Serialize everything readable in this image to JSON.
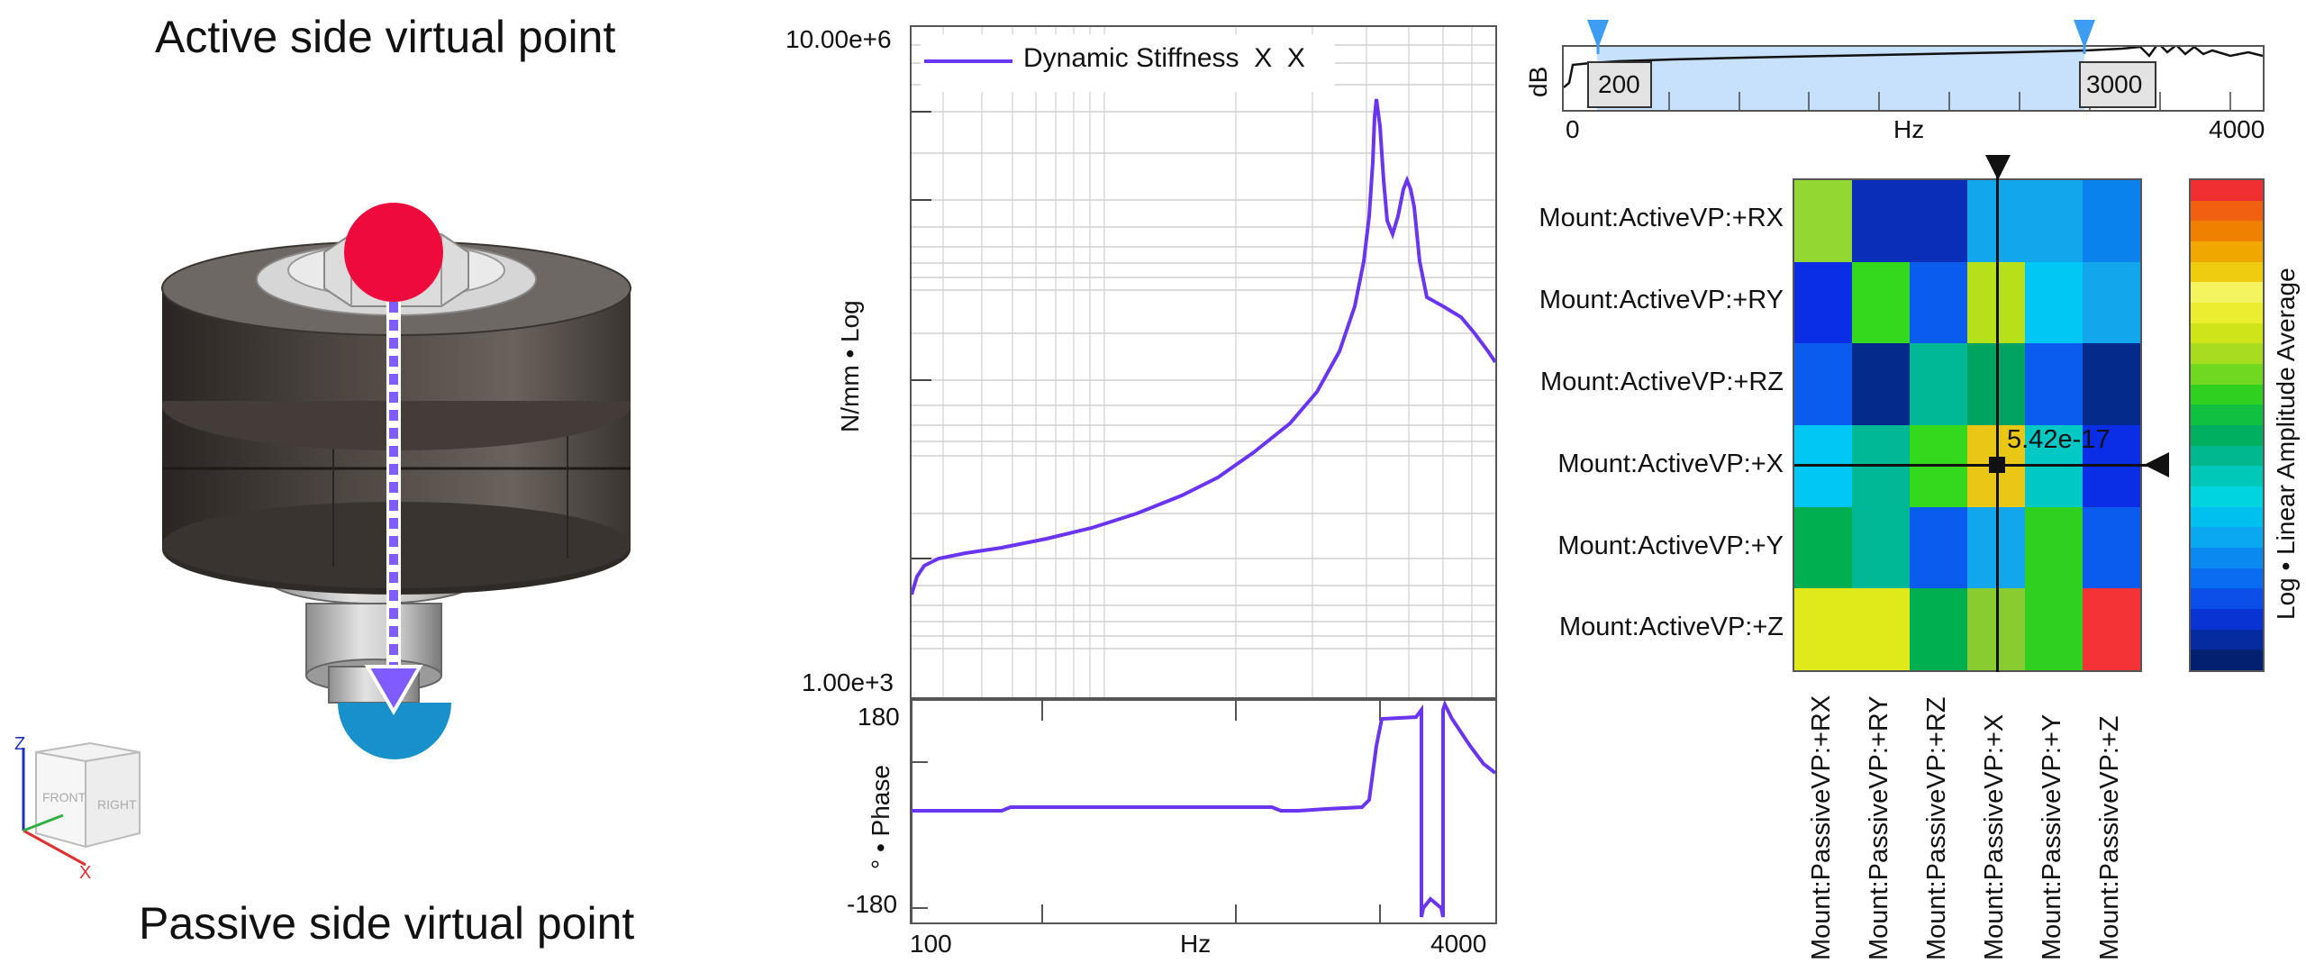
{
  "left_panel": {
    "top_title": "Active side virtual point",
    "bottom_title": "Passive side virtual point",
    "orientation_cube": {
      "axis_z": "Z",
      "axis_x": "X",
      "face_front": "FRONT",
      "face_right": "RIGHT"
    },
    "colors": {
      "active_point": "#ee0a3c",
      "passive_point": "#1890cc",
      "arrow": "#7e5cff"
    }
  },
  "magnitude_plot": {
    "y_top_label": "10.00e+6",
    "y_bottom_label": "1.00e+3",
    "y_axis_label": "N/mm • Log",
    "legend_label": "Dynamic Stiffness  X  X",
    "series_color": "#6a35f0"
  },
  "phase_plot": {
    "y_axis_label": "° • Phase",
    "tick_top": "180",
    "tick_bottom": "-180",
    "x_axis_label": "Hz",
    "x_tick_left": "100",
    "x_tick_right": "4000"
  },
  "range_selector": {
    "y_label": "dB",
    "x_left": "0",
    "x_unit": "Hz",
    "x_right": "4000",
    "range_start": "200",
    "range_end": "3000",
    "marker_color": "#3d9df2"
  },
  "heatmap": {
    "rows": [
      "Mount:ActiveVP:+RX",
      "Mount:ActiveVP:+RY",
      "Mount:ActiveVP:+RZ",
      "Mount:ActiveVP:+X",
      "Mount:ActiveVP:+Y",
      "Mount:ActiveVP:+Z"
    ],
    "columns": [
      "Mount:PassiveVP:+RX",
      "Mount:PassiveVP:+RY",
      "Mount:PassiveVP:+RZ",
      "Mount:PassiveVP:+X",
      "Mount:PassiveVP:+Y",
      "Mount:PassiveVP:+Z"
    ],
    "cells": [
      [
        "#93d832",
        "#0a2eb8",
        "#0a2eb8",
        "#12a6ec",
        "#12a6ec",
        "#0a82ee"
      ],
      [
        "#0a2ee6",
        "#34d81c",
        "#0a5cee",
        "#b6e01a",
        "#00c8f4",
        "#12a6ec"
      ],
      [
        "#0a5cee",
        "#042a8c",
        "#00b896",
        "#00a460",
        "#0a5cee",
        "#042a8c"
      ],
      [
        "#00c8f4",
        "#00b896",
        "#34d81c",
        "#e8c814",
        "#00c8c4",
        "#0a2ee6"
      ],
      [
        "#00b050",
        "#00b896",
        "#0a5cee",
        "#12a6ec",
        "#30d020",
        "#0a5cee"
      ],
      [
        "#e0ea1a",
        "#e0ea1a",
        "#00b050",
        "#88cc30",
        "#30d020",
        "#f43434"
      ]
    ],
    "cursor_readout": "5.42e-17",
    "colorbar_label": "Log • Linear Amplitude Average",
    "colorbar_colors": [
      "#032070",
      "#062ba0",
      "#0a33d4",
      "#0c4ee8",
      "#0a6cf0",
      "#0a8af0",
      "#0aa8f0",
      "#00c0f0",
      "#00d4e0",
      "#00c8b8",
      "#00b890",
      "#00b060",
      "#10c040",
      "#30d020",
      "#70d820",
      "#a8dc20",
      "#d0e41a",
      "#ecec30",
      "#f4f460",
      "#f0cc10",
      "#f0a800",
      "#f08000",
      "#f06010",
      "#f03030"
    ]
  }
}
